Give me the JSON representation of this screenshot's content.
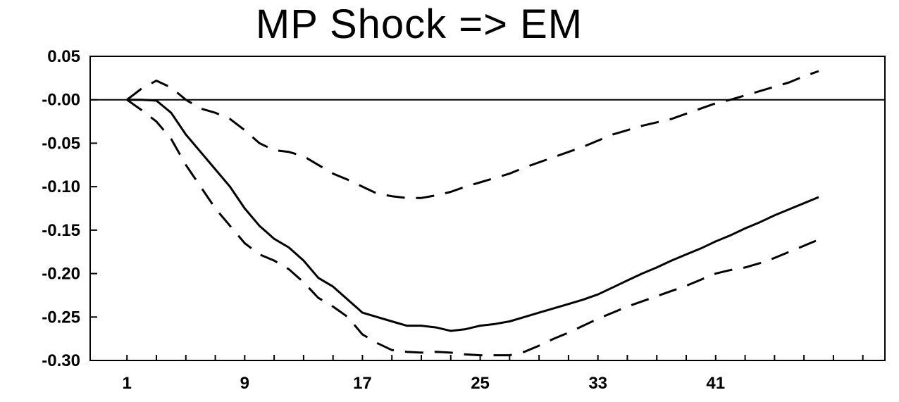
{
  "chart_data": {
    "type": "line",
    "title": "MP Shock => EM",
    "xlabel": "",
    "ylabel": "",
    "x_ticks": [
      "1",
      "9",
      "17",
      "25",
      "33",
      "41"
    ],
    "y_ticks": [
      "0.05",
      "-0.00",
      "-0.05",
      "-0.10",
      "-0.15",
      "-0.20",
      "-0.25",
      "-0.30"
    ],
    "x": [
      1,
      2,
      3,
      4,
      5,
      6,
      7,
      8,
      9,
      10,
      11,
      12,
      13,
      14,
      15,
      16,
      17,
      18,
      19,
      20,
      21,
      22,
      23,
      24,
      25,
      26,
      27,
      28,
      29,
      30,
      31,
      32,
      33,
      34,
      35,
      36,
      37,
      38,
      39,
      40,
      41,
      42,
      43,
      44,
      45,
      46,
      47,
      48
    ],
    "xlim": [
      -1.5,
      52.5
    ],
    "ylim": [
      -0.3,
      0.05
    ],
    "zero_line": true,
    "grid": false,
    "legend": "none",
    "series": [
      {
        "style": "solid",
        "values": [
          0.0,
          0.0,
          -0.001,
          -0.015,
          -0.04,
          -0.06,
          -0.08,
          -0.1,
          -0.125,
          -0.145,
          -0.16,
          -0.17,
          -0.185,
          -0.205,
          -0.215,
          -0.23,
          -0.245,
          -0.25,
          -0.255,
          -0.26,
          -0.26,
          -0.262,
          -0.266,
          -0.264,
          -0.26,
          -0.258,
          -0.255,
          -0.25,
          -0.245,
          -0.24,
          -0.235,
          -0.23,
          -0.224,
          -0.216,
          -0.208,
          -0.2,
          -0.193,
          -0.185,
          -0.178,
          -0.171,
          -0.163,
          -0.156,
          -0.148,
          -0.141,
          -0.133,
          -0.126,
          -0.119,
          -0.112
        ]
      },
      {
        "style": "dashed",
        "values": [
          0.0,
          0.013,
          0.022,
          0.014,
          0.0,
          -0.01,
          -0.015,
          -0.022,
          -0.035,
          -0.05,
          -0.058,
          -0.06,
          -0.065,
          -0.075,
          -0.085,
          -0.092,
          -0.1,
          -0.108,
          -0.111,
          -0.113,
          -0.113,
          -0.11,
          -0.106,
          -0.1,
          -0.095,
          -0.09,
          -0.085,
          -0.078,
          -0.072,
          -0.066,
          -0.06,
          -0.054,
          -0.047,
          -0.04,
          -0.035,
          -0.03,
          -0.026,
          -0.022,
          -0.016,
          -0.01,
          -0.004,
          0.0,
          0.005,
          0.01,
          0.015,
          0.02,
          0.027,
          0.033
        ]
      },
      {
        "style": "dashed",
        "values": [
          0.0,
          -0.012,
          -0.025,
          -0.045,
          -0.075,
          -0.1,
          -0.125,
          -0.145,
          -0.165,
          -0.178,
          -0.185,
          -0.195,
          -0.21,
          -0.228,
          -0.238,
          -0.25,
          -0.27,
          -0.28,
          -0.288,
          -0.29,
          -0.291,
          -0.29,
          -0.291,
          -0.293,
          -0.294,
          -0.294,
          -0.294,
          -0.29,
          -0.283,
          -0.275,
          -0.268,
          -0.26,
          -0.252,
          -0.245,
          -0.238,
          -0.232,
          -0.226,
          -0.22,
          -0.214,
          -0.207,
          -0.2,
          -0.196,
          -0.193,
          -0.188,
          -0.182,
          -0.175,
          -0.168,
          -0.161
        ]
      }
    ],
    "colors": {
      "lines": "#000000",
      "background": "#ffffff"
    }
  }
}
